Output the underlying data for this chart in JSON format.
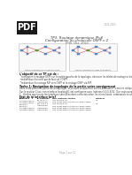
{
  "bg_color": "#ffffff",
  "pdf_text": "PDF",
  "top_right_text": "2022-2023",
  "title_line1": "TP3- Routage dynamique IPv4",
  "title_line2": "Configuration du protocole OSPF v 2",
  "title_line3": "ENS. Oct. 2022",
  "section1_title": "L'objectif de ce TP est de :",
  "section1_bullets": [
    "configurer le routage OSPF sur la partie gauche de la topologie, observer les tables de routage a chaque etape de la configuration, observer et identifier les routes OSPF, decrire les metriques OSPF (cout).",
    "redistribuer la route par defaut sur l'OSPF.",
    "redistribuer le routage RIP vers OSPF et le routage OSPF via RIP."
  ],
  "section2_title": "Tache 1: Navigation de topologie de la partie votre consignment",
  "section2_text1": "Dans cette premiere partie de la topologie, vous avez uniquement sur les adresses IP a mettre indique sur les schemas ci-dessus. la partie droite est deja configuree par le processeur de routage RIP.",
  "section2_text2": "Sur le routeur Cisco, son interface loopback0, est configuree avec l'adresse 5.5.5.5/32. Que vous avez pas defini est configuree via loopback0 explicite.",
  "task1": "1.  Verifiez que toutes les interfaces sont-Elles dans correctes selon les mises-heure. commande no shutdown.",
  "table_title": "Etat de ip interface brief",
  "table_headers": [
    "Interface",
    "IP-Address",
    "OK? Method Status",
    "Protocol"
  ],
  "table_rows": [
    [
      "FastEthernet0/0",
      "10.10.10.1",
      "YES manual up",
      "up"
    ],
    [
      "FastEthernet0/1",
      "unassigned",
      "YES unset administratively down down",
      ""
    ],
    [
      "Serial2/0",
      "192.168.1.2",
      "YES manual up",
      "up"
    ],
    [
      "Serial3/0",
      "unassigned",
      "YES unset administratively down down",
      ""
    ],
    [
      "FastEthernet4/0",
      "unassigned",
      "YES unset administratively down down",
      ""
    ],
    [
      "FastEthernet6/0",
      "unassigned",
      "YES unset administratively down down",
      ""
    ]
  ],
  "footer": "Page 1 sur 11",
  "left_label": "Partie configuration a realiser OSPF",
  "right_label": "Partie configuration deja configuree"
}
